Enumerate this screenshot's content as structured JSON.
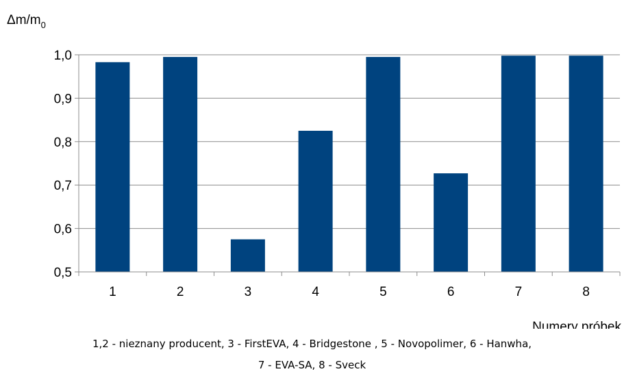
{
  "chart_data": {
    "type": "bar",
    "categories": [
      "1",
      "2",
      "3",
      "4",
      "5",
      "6",
      "7",
      "8"
    ],
    "values": [
      0.983,
      0.995,
      0.575,
      0.825,
      0.995,
      0.727,
      0.998,
      0.998
    ],
    "ylabel": "Δm/m",
    "ylabel_subscript": "0",
    "xlabel": "Numery próbek",
    "ylim": [
      0.5,
      1.0
    ],
    "yticks": [
      "0,5",
      "0,6",
      "0,7",
      "0,8",
      "0,9",
      "1,0"
    ],
    "bar_color": "#00437F",
    "grid": true
  },
  "caption": {
    "line1": "1,2 - nieznany producent,  3 - FirstEVA,  4 - Bridgestone , 5 - Novopolimer,  6 - Hanwha,",
    "line2": "7 - EVA-SA,  8 - Sveck"
  }
}
